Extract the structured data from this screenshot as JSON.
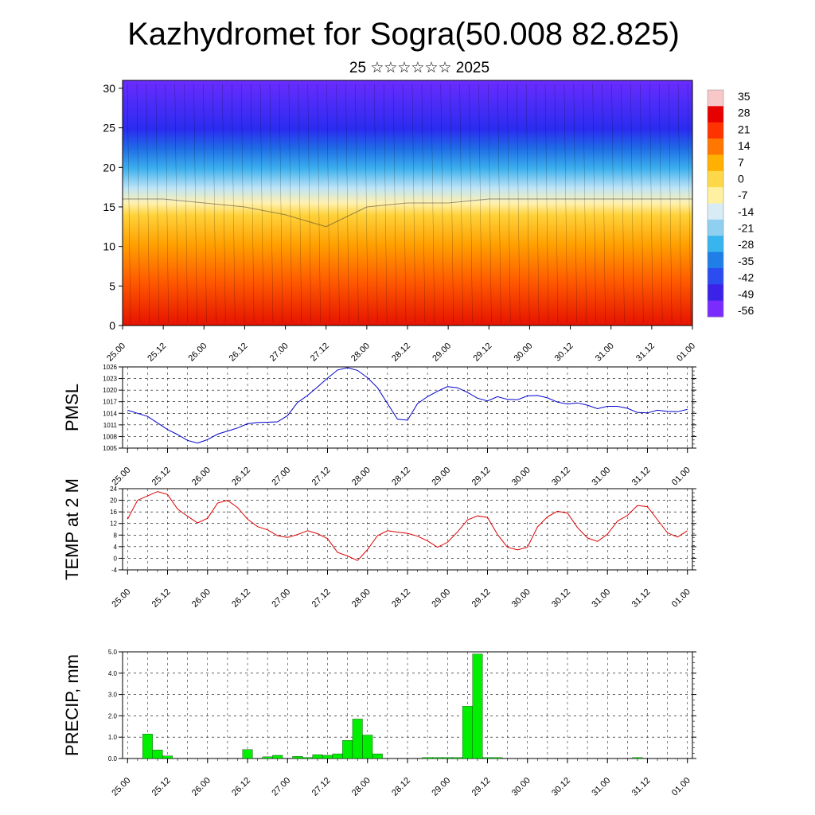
{
  "title": "Kazhydromet for Sogra(50.008 82.825)",
  "subtitle": "25 ☆☆☆☆☆☆ 2025",
  "colorbar": {
    "labels": [
      "35",
      "28",
      "21",
      "14",
      "7",
      "0",
      "-7",
      "-14",
      "-21",
      "-28",
      "-35",
      "-42",
      "-49",
      "-56"
    ],
    "colors": [
      "#f8c8c8",
      "#e60000",
      "#ff3300",
      "#ff7700",
      "#ffb000",
      "#ffd84a",
      "#fff1a0",
      "#d8ecf6",
      "#8fd0f0",
      "#38b4ee",
      "#1f7ee8",
      "#2a4cf0",
      "#3a22e8",
      "#7a2cff"
    ]
  },
  "chart_data": [
    {
      "type": "heatmap",
      "title": "",
      "ylim": [
        0,
        31
      ],
      "yticks": [
        0,
        5,
        10,
        15,
        20,
        25,
        30
      ],
      "xticks": [
        "25.00",
        "25.12",
        "26.00",
        "26.12",
        "27.00",
        "27.12",
        "28.00",
        "28.12",
        "29.00",
        "29.12",
        "30.00",
        "30.12",
        "31.00",
        "31.12",
        "01.00"
      ],
      "freezing_level_by_x": [
        16,
        16,
        15.5,
        15,
        14,
        12.5,
        15,
        15.5,
        15.5,
        16,
        16,
        16,
        16,
        16,
        16
      ],
      "colorscale_ticks": [
        35,
        28,
        21,
        14,
        7,
        0,
        -7,
        -14,
        -21,
        -28,
        -35,
        -42,
        -49,
        -56
      ]
    },
    {
      "type": "line",
      "ylabel": "PMSL",
      "color": "#0000cc",
      "ylim": [
        1005,
        1026
      ],
      "yticks": [
        1005,
        1008,
        1011,
        1014,
        1017,
        1020,
        1023,
        1026
      ],
      "xticks": [
        "25.00",
        "25.12",
        "26.00",
        "26.12",
        "27.00",
        "27.12",
        "28.00",
        "28.12",
        "29.00",
        "29.12",
        "30.00",
        "30.12",
        "31.00",
        "31.12",
        "01.00"
      ],
      "x": [
        0,
        1,
        2,
        3,
        4,
        5,
        6,
        7,
        8,
        9,
        10,
        11,
        12,
        13,
        14,
        15,
        16,
        17,
        18,
        19,
        20,
        21,
        22,
        23,
        24,
        25,
        26,
        27,
        28,
        29,
        30,
        31,
        32,
        33,
        34,
        35,
        36,
        37,
        38,
        39,
        40,
        41,
        42,
        43,
        44,
        45,
        46,
        47,
        48,
        49,
        50,
        51,
        52,
        53,
        54,
        55,
        56
      ],
      "values": [
        1014.8,
        1014,
        1013.2,
        1011.5,
        1009.8,
        1008.5,
        1007,
        1006.3,
        1007.2,
        1008.6,
        1009.4,
        1010.2,
        1011.3,
        1011.6,
        1011.7,
        1011.8,
        1013.4,
        1016.8,
        1018.6,
        1020.8,
        1023.1,
        1025.2,
        1025.8,
        1025.1,
        1023.2,
        1020.6,
        1016.5,
        1012.5,
        1012.2,
        1016.5,
        1018.3,
        1019.7,
        1020.9,
        1020.6,
        1019.4,
        1017.9,
        1017.2,
        1018.3,
        1017.6,
        1017.5,
        1018.5,
        1018.6,
        1018,
        1016.9,
        1016.4,
        1016.7,
        1016.1,
        1015.2,
        1015.8,
        1015.8,
        1015.3,
        1014.2,
        1014.1,
        1014.8,
        1014.5,
        1014.4,
        1015
      ]
    },
    {
      "type": "line",
      "ylabel": "TEMP at 2 M",
      "color": "#dd0000",
      "ylim": [
        -4,
        24
      ],
      "yticks": [
        -4,
        0,
        4,
        8,
        12,
        16,
        20,
        24
      ],
      "xticks": [
        "25.00",
        "25.12",
        "26.00",
        "26.12",
        "27.00",
        "27.12",
        "28.00",
        "28.12",
        "29.00",
        "29.12",
        "30.00",
        "30.12",
        "31.00",
        "31.12",
        "01.00"
      ],
      "x": [
        0,
        1,
        2,
        3,
        4,
        5,
        6,
        7,
        8,
        9,
        10,
        11,
        12,
        13,
        14,
        15,
        16,
        17,
        18,
        19,
        20,
        21,
        22,
        23,
        24,
        25,
        26,
        27,
        28,
        29,
        30,
        31,
        32,
        33,
        34,
        35,
        36,
        37,
        38,
        39,
        40,
        41,
        42,
        43,
        44,
        45,
        46,
        47,
        48,
        49,
        50,
        51,
        52,
        53,
        54,
        55,
        56
      ],
      "values": [
        13.5,
        20,
        21.5,
        23,
        22,
        17,
        14.5,
        12.2,
        13.8,
        19,
        20,
        17.5,
        13.5,
        10.9,
        9.8,
        7.8,
        7.2,
        8.2,
        9.5,
        8.5,
        6.8,
        2,
        0.8,
        -0.8,
        3,
        7.8,
        9.5,
        9,
        8.6,
        7.6,
        6,
        3.8,
        5.5,
        9.1,
        13.2,
        14.6,
        14.1,
        8.2,
        3.8,
        2.9,
        3.8,
        10.8,
        14.3,
        16.2,
        15.6,
        10.6,
        7,
        5.8,
        8.3,
        12.8,
        14.8,
        18.2,
        17.8,
        13.3,
        8.8,
        7.3,
        9.5
      ]
    },
    {
      "type": "bar",
      "ylabel": "PRECIP, mm",
      "color": "#00ee00",
      "ylim": [
        0,
        5
      ],
      "yticks": [
        0.0,
        1.0,
        2.0,
        3.0,
        4.0,
        5.0
      ],
      "ytick_labels": [
        "0.0",
        "1.0",
        "2.0",
        "3.0",
        "4.0",
        "5.0"
      ],
      "xticks": [
        "25.00",
        "25.12",
        "26.00",
        "26.12",
        "27.00",
        "27.12",
        "28.00",
        "28.12",
        "29.00",
        "29.12",
        "30.00",
        "30.12",
        "31.00",
        "31.12",
        "01.00"
      ],
      "bars": [
        {
          "x": 2,
          "value": 1.15
        },
        {
          "x": 3,
          "value": 0.4
        },
        {
          "x": 4,
          "value": 0.12
        },
        {
          "x": 12,
          "value": 0.42
        },
        {
          "x": 14,
          "value": 0.08
        },
        {
          "x": 15,
          "value": 0.15
        },
        {
          "x": 17,
          "value": 0.1
        },
        {
          "x": 18,
          "value": 0.05
        },
        {
          "x": 19,
          "value": 0.18
        },
        {
          "x": 20,
          "value": 0.15
        },
        {
          "x": 21,
          "value": 0.22
        },
        {
          "x": 22,
          "value": 0.85
        },
        {
          "x": 23,
          "value": 1.85
        },
        {
          "x": 24,
          "value": 1.1
        },
        {
          "x": 25,
          "value": 0.22
        },
        {
          "x": 30,
          "value": 0.05
        },
        {
          "x": 31,
          "value": 0.05
        },
        {
          "x": 32,
          "value": 0.05
        },
        {
          "x": 33,
          "value": 0.05
        },
        {
          "x": 34,
          "value": 2.45
        },
        {
          "x": 35,
          "value": 4.9
        },
        {
          "x": 36,
          "value": 0.05
        },
        {
          "x": 37,
          "value": 0.05
        },
        {
          "x": 51,
          "value": 0.05
        }
      ]
    }
  ]
}
